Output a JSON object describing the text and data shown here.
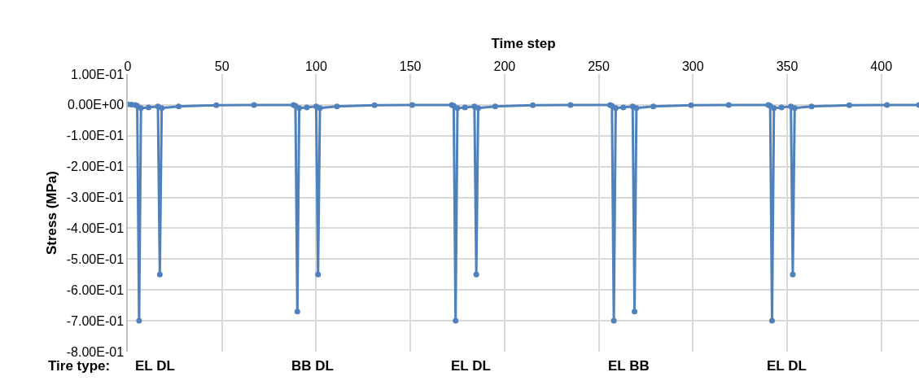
{
  "chart_data": {
    "type": "line",
    "xlabel": "Time step",
    "ylabel": "Stress (MPa)",
    "x": [
      0,
      2,
      4,
      5,
      6,
      7,
      11,
      16,
      17,
      18,
      27,
      47,
      67,
      88,
      89,
      90,
      91,
      95,
      100,
      101,
      102,
      111,
      131,
      151,
      172,
      173,
      174,
      175,
      179,
      184,
      185,
      186,
      195,
      215,
      235,
      256,
      257,
      258,
      259,
      263,
      268,
      269,
      270,
      279,
      299,
      319,
      340,
      341,
      342,
      343,
      347,
      352,
      353,
      354,
      363,
      383,
      403,
      420
    ],
    "series": [
      {
        "color": "#4f81bd",
        "values": [
          0.002,
          0.001,
          0,
          -0.003,
          -0.7,
          -0.01,
          -0.008,
          -0.005,
          -0.55,
          -0.01,
          -0.005,
          -0.001,
          0,
          0,
          -0.003,
          -0.67,
          -0.01,
          -0.008,
          -0.005,
          -0.55,
          -0.01,
          -0.005,
          -0.001,
          0,
          0,
          -0.003,
          -0.7,
          -0.01,
          -0.008,
          -0.005,
          -0.55,
          -0.01,
          -0.005,
          -0.001,
          0,
          0,
          -0.003,
          -0.7,
          -0.01,
          -0.008,
          -0.005,
          -0.67,
          -0.01,
          -0.005,
          -0.001,
          0,
          0,
          -0.003,
          -0.7,
          -0.01,
          -0.008,
          -0.005,
          -0.55,
          -0.01,
          -0.005,
          -0.001,
          0,
          0
        ]
      }
    ],
    "xlim": [
      0,
      420
    ],
    "xticks": [
      0,
      50,
      100,
      150,
      200,
      250,
      300,
      350,
      400
    ],
    "ylim": [
      -0.8,
      0.1
    ],
    "yticks": [
      {
        "value": 0.1,
        "label": "1.00E-01"
      },
      {
        "value": 0,
        "label": "0.00E+00"
      },
      {
        "value": -0.1,
        "label": "-1.00E-01"
      },
      {
        "value": -0.2,
        "label": "-2.00E-01"
      },
      {
        "value": -0.3,
        "label": "-3.00E-01"
      },
      {
        "value": -0.4,
        "label": "-4.00E-01"
      },
      {
        "value": -0.5,
        "label": "-5.00E-01"
      },
      {
        "value": -0.6,
        "label": "-6.00E-01"
      },
      {
        "value": -0.7,
        "label": "-7.00E-01"
      },
      {
        "value": -0.8,
        "label": "-8.00E-01"
      }
    ],
    "grid": true,
    "legend": false,
    "marker": "circle",
    "line_style": "solid",
    "annotations": [
      "Tire type:",
      "EL DL",
      "BB DL",
      "EL DL",
      "EL BB",
      "EL DL"
    ]
  }
}
